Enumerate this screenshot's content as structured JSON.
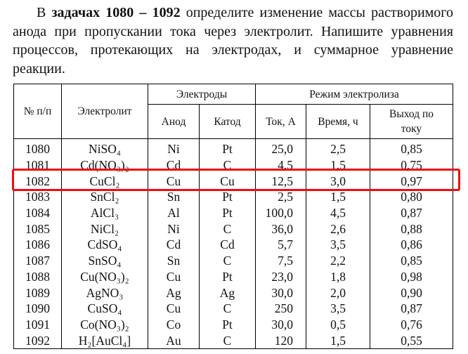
{
  "intro": {
    "prefix": "В ",
    "bold": "задачах 1080 – 1092",
    "text": " определите изменение массы растворимого анода при пропускании тока через электролит. Напишите уравнения процессов, протекающих на электродах, и суммарное уравнение реакции."
  },
  "table": {
    "headers": {
      "num": "№ п/п",
      "electrolyte": "Электролит",
      "electrodes": "Электроды",
      "mode": "Режим электролиза",
      "anode": "Анод",
      "cathode": "Катод",
      "current": "Ток, А",
      "time": "Время, ч",
      "yield": "Выход по току"
    },
    "rows": [
      [
        "1080",
        "NiSO₄",
        "Ni",
        "Pt",
        "25,0",
        "2,5",
        "0,85"
      ],
      [
        "1081",
        "Cd(NO₃)₂",
        "Cd",
        "C",
        "4,5",
        "1,5",
        "0,75"
      ],
      [
        "1082",
        "CuCl₂",
        "Cu",
        "Cu",
        "12,5",
        "3,0",
        "0,97"
      ],
      [
        "1083",
        "SnCl₂",
        "Sn",
        "Pt",
        "2,5",
        "1,5",
        "0,80"
      ],
      [
        "1084",
        "AlCl₃",
        "Al",
        "Pt",
        "100,0",
        "4,5",
        "0,87"
      ],
      [
        "1085",
        "NiCl₂",
        "Ni",
        "C",
        "36,0",
        "2,6",
        "0,88"
      ],
      [
        "1086",
        "CdSO₄",
        "Cd",
        "Cd",
        "5,7",
        "3,5",
        "0,86"
      ],
      [
        "1087",
        "SnSO₄",
        "Sn",
        "C",
        "7,5",
        "2,2",
        "0,85"
      ],
      [
        "1088",
        "Cu(NO₃)₂",
        "Cu",
        "Pt",
        "23,0",
        "1,8",
        "0,98"
      ],
      [
        "1089",
        "AgNO₃",
        "Ag",
        "Ag",
        "30,0",
        "2,0",
        "0,90"
      ],
      [
        "1090",
        "CuSO₄",
        "Cu",
        "C",
        "250",
        "3,5",
        "0,87"
      ],
      [
        "1091",
        "Co(NO₃)₂",
        "Co",
        "Pt",
        "30,0",
        "0,5",
        "0,76"
      ],
      [
        "1092",
        "H₂[AuCl₄]",
        "Au",
        "C",
        "120",
        "1,5",
        "0,55"
      ]
    ],
    "highlighted_row": "1082",
    "highlight_color": "#f20c0c"
  }
}
